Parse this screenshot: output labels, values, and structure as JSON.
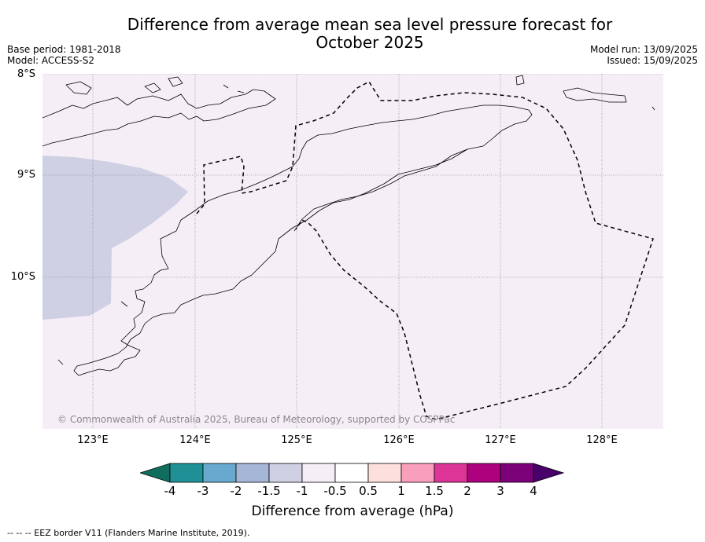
{
  "header": {
    "title_line1": "Difference from average mean sea level pressure forecast for",
    "title_line2": "October 2025",
    "base_period": "Base period: 1981-2018",
    "model": "Model: ACCESS-S2",
    "model_run": "Model run: 13/09/2025",
    "issued": "Issued: 15/09/2025"
  },
  "map": {
    "lat_labels": [
      "8°S",
      "9°S",
      "10°S"
    ],
    "lon_labels": [
      "123°E",
      "124°E",
      "125°E",
      "126°E",
      "127°E",
      "128°E"
    ],
    "background_color": "#f5eef6",
    "anomaly_patch_color": "#cfd0e4",
    "anomaly_patch_value_range": "-1.5 to -1",
    "copyright": "© Commonwealth of Australia 2025, Bureau of Meteorology, supported by COSPPac"
  },
  "colorbar": {
    "tick_labels": [
      "-4",
      "-3",
      "-2",
      "-1.5",
      "-1",
      "-0.5",
      "0.5",
      "1",
      "1.5",
      "2",
      "3",
      "4"
    ],
    "colors": [
      "#0f6e5e",
      "#1f9196",
      "#6aa9cf",
      "#a5b6d6",
      "#cfd0e4",
      "#f5eef6",
      "#ffffff",
      "#fde0dd",
      "#f99fbd",
      "#dd3497",
      "#ae017e",
      "#7a0177",
      "#49006a"
    ],
    "label": "Difference from average (hPa)"
  },
  "footnote": "--  --  -- EEZ border V11 (Flanders Marine Institute, 2019)."
}
